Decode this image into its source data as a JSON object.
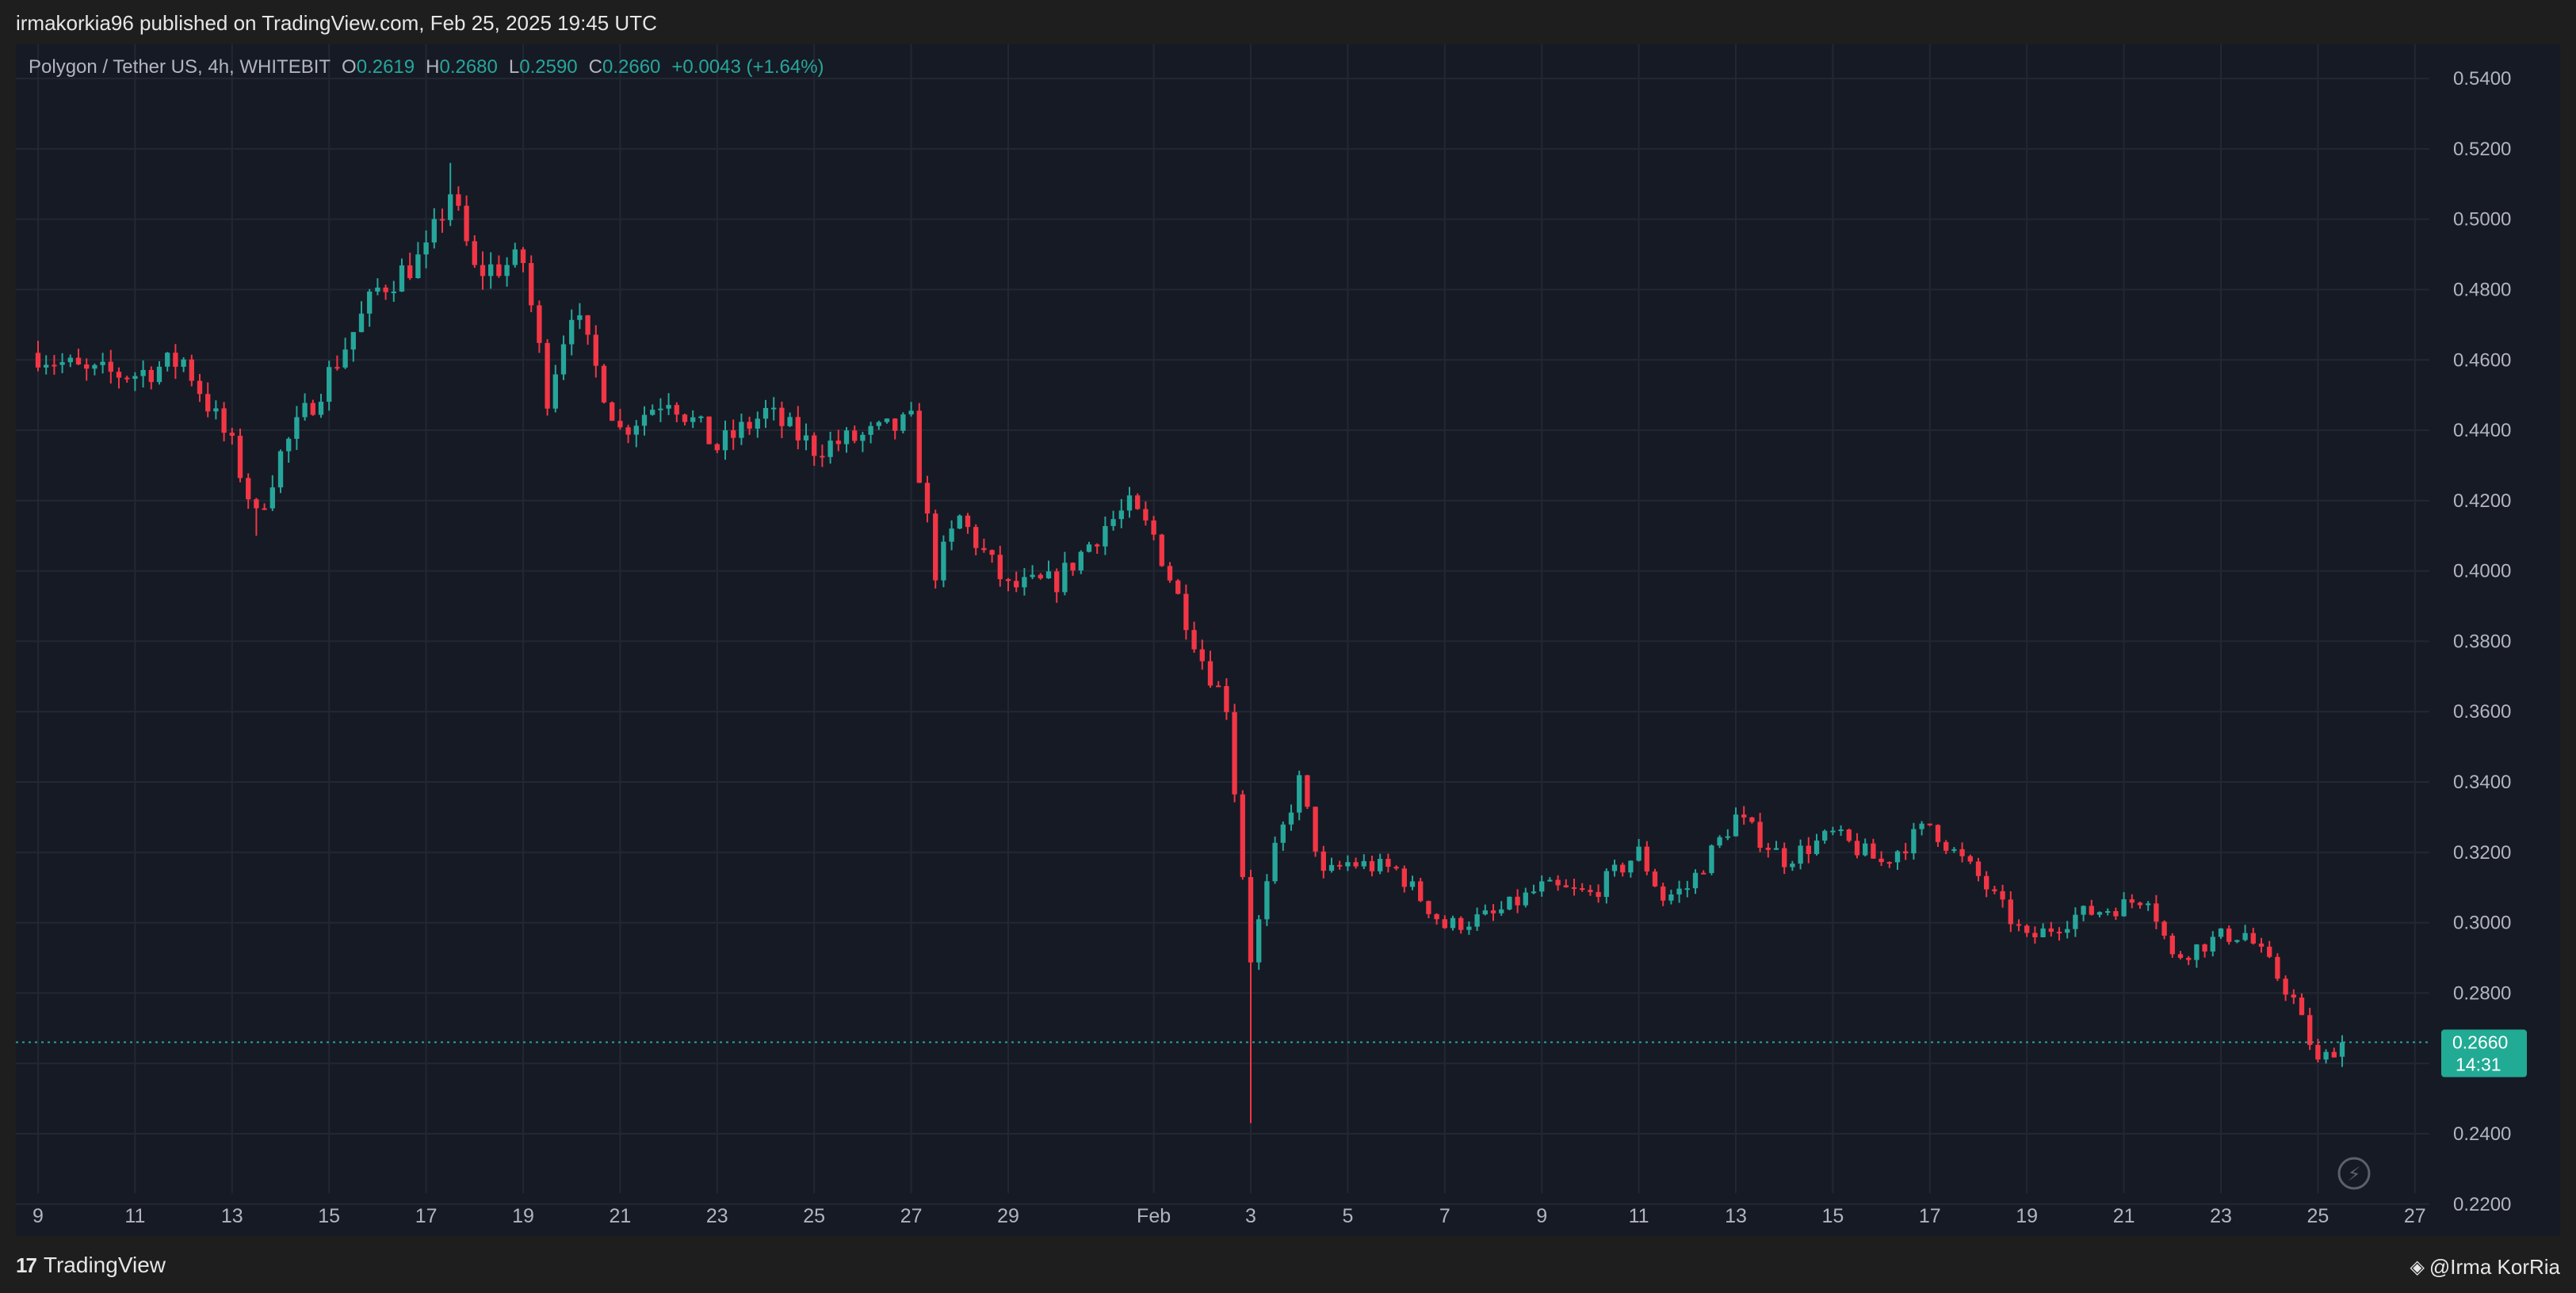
{
  "header": {
    "published_line": "irmakorkia96 published on TradingView.com, Feb 25, 2025 19:45 UTC"
  },
  "legend": {
    "symbol": "Polygon / Tether US, 4h, WHITEBIT",
    "o_label": "O",
    "o_value": "0.2619",
    "h_label": "H",
    "h_value": "0.2680",
    "l_label": "L",
    "l_value": "0.2590",
    "c_label": "C",
    "c_value": "0.2660",
    "change": "+0.0043 (+1.64%)"
  },
  "price_tag": {
    "price": "0.2660",
    "countdown": "14:31"
  },
  "footer": {
    "logo_mark": "17",
    "logo_text": "TradingView",
    "author": "@Irma KorRia",
    "author_icon": "diamond-icon"
  },
  "colors": {
    "up": "#26a69a",
    "down": "#f23645",
    "background": "#161a25",
    "grid": "#232733",
    "axis_text": "#b2b5be",
    "price_tag_bg": "#22ab94"
  },
  "chart_data": {
    "type": "candlestick",
    "symbol": "Polygon / Tether US",
    "interval": "4h",
    "exchange": "WHITEBIT",
    "x_ticks": [
      "9",
      "11",
      "13",
      "15",
      "17",
      "19",
      "21",
      "23",
      "25",
      "27",
      "29",
      "Feb",
      "3",
      "5",
      "7",
      "9",
      "11",
      "13",
      "15",
      "17",
      "19",
      "21",
      "23",
      "25",
      "27"
    ],
    "y_ticks": [
      "0.5400",
      "0.5200",
      "0.5000",
      "0.4800",
      "0.4600",
      "0.4400",
      "0.4200",
      "0.4000",
      "0.3800",
      "0.3600",
      "0.3400",
      "0.3200",
      "0.3000",
      "0.2800",
      "0.2600",
      "0.2400",
      "0.2200"
    ],
    "ylim": [
      0.2186,
      0.5452
    ],
    "x_axis_start": "Jan 9",
    "x_axis_end": "Feb 27",
    "last_price": 0.266,
    "ohlc_last": {
      "open": 0.2619,
      "high": 0.268,
      "low": 0.259,
      "close": 0.266
    },
    "price_anchors": [
      {
        "date": "Jan 9",
        "price": 0.462
      },
      {
        "date": "Jan 10",
        "price": 0.456
      },
      {
        "date": "Jan 11",
        "price": 0.456
      },
      {
        "date": "Jan 12",
        "price": 0.46
      },
      {
        "date": "Jan 13",
        "price": 0.435
      },
      {
        "date": "Jan 13.5",
        "price": 0.415
      },
      {
        "date": "Jan 14",
        "price": 0.433
      },
      {
        "date": "Jan 15",
        "price": 0.456
      },
      {
        "date": "Jan 16",
        "price": 0.48
      },
      {
        "date": "Jan 17",
        "price": 0.49
      },
      {
        "date": "Jan 17.5",
        "price": 0.508
      },
      {
        "date": "Jan 18",
        "price": 0.485
      },
      {
        "date": "Jan 19",
        "price": 0.488
      },
      {
        "date": "Jan 19.5",
        "price": 0.45
      },
      {
        "date": "Jan 20",
        "price": 0.475
      },
      {
        "date": "Jan 21",
        "price": 0.44
      },
      {
        "date": "Jan 22",
        "price": 0.45
      },
      {
        "date": "Jan 23",
        "price": 0.435
      },
      {
        "date": "Jan 24",
        "price": 0.445
      },
      {
        "date": "Jan 25",
        "price": 0.435
      },
      {
        "date": "Jan 26",
        "price": 0.438
      },
      {
        "date": "Jan 27",
        "price": 0.442
      },
      {
        "date": "Jan 27.5",
        "price": 0.4
      },
      {
        "date": "Jan 28",
        "price": 0.415
      },
      {
        "date": "Jan 29",
        "price": 0.395
      },
      {
        "date": "Jan 30",
        "price": 0.397
      },
      {
        "date": "Jan 31",
        "price": 0.413
      },
      {
        "date": "Jan 31.5",
        "price": 0.418
      },
      {
        "date": "Feb 1",
        "price": 0.41
      },
      {
        "date": "Feb 2",
        "price": 0.375
      },
      {
        "date": "Feb 2.5",
        "price": 0.362
      },
      {
        "date": "Feb 3",
        "price": 0.29
      },
      {
        "date": "Feb 3.5",
        "price": 0.32
      },
      {
        "date": "Feb 4",
        "price": 0.34
      },
      {
        "date": "Feb 4.5",
        "price": 0.313
      },
      {
        "date": "Feb 5",
        "price": 0.317
      },
      {
        "date": "Feb 6",
        "price": 0.315
      },
      {
        "date": "Feb 7",
        "price": 0.299
      },
      {
        "date": "Feb 8",
        "price": 0.302
      },
      {
        "date": "Feb 9",
        "price": 0.31
      },
      {
        "date": "Feb 10",
        "price": 0.308
      },
      {
        "date": "Feb 11",
        "price": 0.32
      },
      {
        "date": "Feb 11.5",
        "price": 0.307
      },
      {
        "date": "Feb 12",
        "price": 0.31
      },
      {
        "date": "Feb 13",
        "price": 0.33
      },
      {
        "date": "Feb 14",
        "price": 0.318
      },
      {
        "date": "Feb 15",
        "price": 0.325
      },
      {
        "date": "Feb 16",
        "price": 0.317
      },
      {
        "date": "Feb 17",
        "price": 0.328
      },
      {
        "date": "Feb 17.5",
        "price": 0.32
      },
      {
        "date": "Feb 18",
        "price": 0.313
      },
      {
        "date": "Feb 19",
        "price": 0.295
      },
      {
        "date": "Feb 20",
        "price": 0.302
      },
      {
        "date": "Feb 21",
        "price": 0.305
      },
      {
        "date": "Feb 21.5",
        "price": 0.308
      },
      {
        "date": "Feb 22",
        "price": 0.29
      },
      {
        "date": "Feb 23",
        "price": 0.296
      },
      {
        "date": "Feb 23.5",
        "price": 0.297
      },
      {
        "date": "Feb 24",
        "price": 0.288
      },
      {
        "date": "Feb 24.5",
        "price": 0.278
      },
      {
        "date": "Feb 25",
        "price": 0.26
      },
      {
        "date": "Feb 25.5",
        "price": 0.266
      }
    ],
    "notable_wicks": [
      {
        "date": "Feb 3",
        "low": 0.243
      },
      {
        "date": "Jan 17.5",
        "high": 0.516
      },
      {
        "date": "Jan 13.5",
        "low": 0.41
      }
    ],
    "candles_per_day": 6
  }
}
